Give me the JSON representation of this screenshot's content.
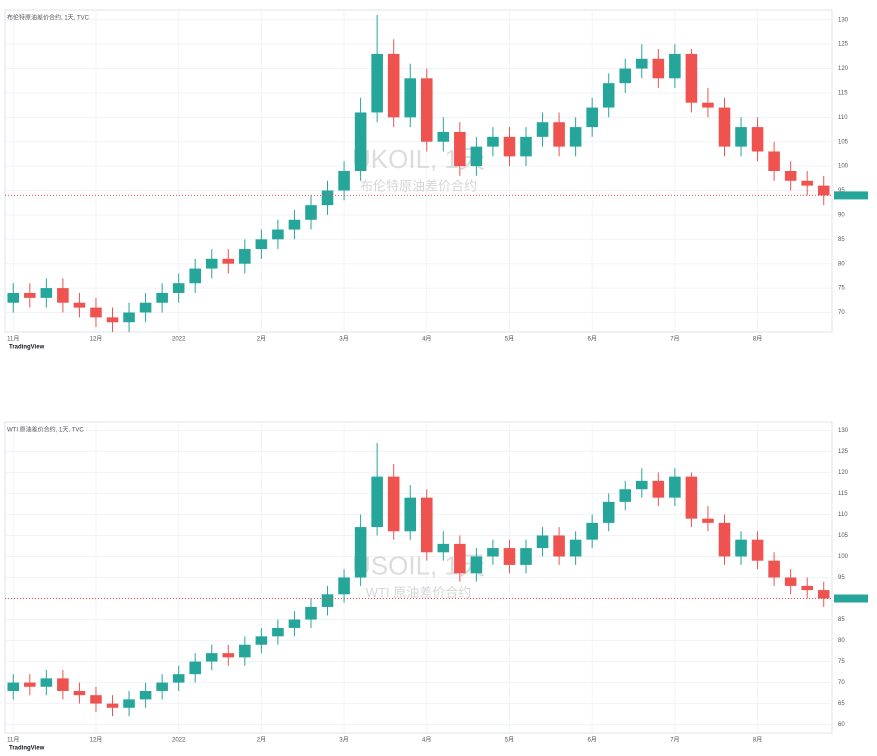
{
  "chart_data": [
    {
      "type": "candlestick",
      "title": "布伦特原油差价合约, 1天, TVC",
      "watermark": "UKOIL, 1天",
      "watermark_sub": "布伦特原油差价合约",
      "brand": "TradingView",
      "up_color": "#26a69a",
      "down_color": "#ef5350",
      "grid": true,
      "categories": [
        "11月",
        null,
        null,
        null,
        null,
        "12月",
        null,
        null,
        null,
        null,
        "2022",
        null,
        null,
        null,
        null,
        "2月",
        null,
        null,
        null,
        null,
        "3月",
        null,
        null,
        null,
        null,
        "4月",
        null,
        null,
        null,
        null,
        "5月",
        null,
        null,
        null,
        null,
        "6月",
        null,
        null,
        null,
        null,
        "7月",
        null,
        null,
        null,
        null,
        "8月",
        null,
        null,
        null,
        null
      ],
      "open": [
        72,
        74,
        73,
        75,
        72,
        71,
        69,
        68,
        70,
        72,
        74,
        76,
        79,
        81,
        80,
        83,
        85,
        87,
        89,
        92,
        95,
        99,
        111,
        123,
        110,
        118,
        105,
        107,
        100,
        104,
        106,
        102,
        106,
        109,
        104,
        108,
        112,
        117,
        120,
        122,
        118,
        123,
        113,
        112,
        104,
        108,
        103,
        99,
        97,
        96
      ],
      "high": [
        76,
        76,
        77,
        77,
        74,
        73,
        71,
        72,
        74,
        76,
        78,
        81,
        83,
        83,
        85,
        87,
        89,
        91,
        94,
        97,
        101,
        114,
        131,
        126,
        121,
        120,
        110,
        109,
        106,
        108,
        108,
        108,
        111,
        111,
        110,
        114,
        119,
        122,
        125,
        124,
        125,
        124,
        116,
        114,
        110,
        110,
        105,
        101,
        99,
        98
      ],
      "low": [
        70,
        71,
        71,
        70,
        69,
        67,
        66,
        66,
        68,
        70,
        72,
        74,
        77,
        78,
        78,
        81,
        83,
        85,
        87,
        90,
        93,
        97,
        109,
        108,
        108,
        103,
        103,
        98,
        98,
        102,
        100,
        100,
        104,
        102,
        102,
        106,
        110,
        115,
        118,
        116,
        116,
        111,
        110,
        102,
        102,
        101,
        97,
        95,
        94,
        92
      ],
      "close": [
        74,
        73,
        75,
        72,
        71,
        69,
        68,
        70,
        72,
        74,
        76,
        79,
        81,
        80,
        83,
        85,
        87,
        89,
        92,
        95,
        99,
        111,
        123,
        110,
        118,
        105,
        107,
        100,
        104,
        106,
        102,
        106,
        109,
        104,
        108,
        112,
        117,
        120,
        122,
        118,
        123,
        113,
        112,
        104,
        108,
        103,
        99,
        97,
        96,
        94
      ],
      "ylim": [
        66,
        132
      ],
      "yticks": [
        70,
        75,
        80,
        85,
        90,
        95,
        100,
        105,
        110,
        115,
        120,
        125,
        130
      ]
    },
    {
      "type": "candlestick",
      "title": "WTI 原油差价合约, 1天, TVC",
      "watermark": "USOIL, 1天",
      "watermark_sub": "WTI 原油差价合约",
      "brand": "TradingView",
      "up_color": "#26a69a",
      "down_color": "#ef5350",
      "grid": true,
      "categories": [
        "11月",
        null,
        null,
        null,
        null,
        "12月",
        null,
        null,
        null,
        null,
        "2022",
        null,
        null,
        null,
        null,
        "2月",
        null,
        null,
        null,
        null,
        "3月",
        null,
        null,
        null,
        null,
        "4月",
        null,
        null,
        null,
        null,
        "5月",
        null,
        null,
        null,
        null,
        "6月",
        null,
        null,
        null,
        null,
        "7月",
        null,
        null,
        null,
        null,
        "8月",
        null,
        null,
        null,
        null
      ],
      "open": [
        68,
        70,
        69,
        71,
        68,
        67,
        65,
        64,
        66,
        68,
        70,
        72,
        75,
        77,
        76,
        79,
        81,
        83,
        85,
        88,
        91,
        95,
        107,
        119,
        106,
        114,
        101,
        103,
        96,
        100,
        102,
        98,
        102,
        105,
        100,
        104,
        108,
        113,
        116,
        118,
        114,
        119,
        109,
        108,
        100,
        104,
        99,
        95,
        93,
        92
      ],
      "high": [
        72,
        72,
        73,
        73,
        70,
        69,
        67,
        68,
        70,
        72,
        74,
        77,
        79,
        79,
        81,
        83,
        85,
        87,
        90,
        93,
        97,
        110,
        127,
        122,
        117,
        116,
        106,
        105,
        102,
        104,
        104,
        104,
        107,
        107,
        106,
        110,
        115,
        118,
        121,
        120,
        121,
        120,
        112,
        110,
        106,
        106,
        101,
        97,
        95,
        94
      ],
      "low": [
        66,
        67,
        67,
        66,
        65,
        63,
        62,
        62,
        64,
        66,
        68,
        70,
        73,
        74,
        74,
        77,
        79,
        81,
        83,
        86,
        89,
        93,
        105,
        104,
        104,
        99,
        99,
        94,
        94,
        98,
        96,
        96,
        100,
        98,
        98,
        102,
        106,
        111,
        114,
        112,
        112,
        107,
        106,
        98,
        98,
        97,
        93,
        91,
        90,
        88
      ],
      "close": [
        70,
        69,
        71,
        68,
        67,
        65,
        64,
        66,
        68,
        70,
        72,
        75,
        77,
        76,
        79,
        81,
        83,
        85,
        88,
        91,
        95,
        107,
        119,
        106,
        114,
        101,
        103,
        96,
        100,
        102,
        98,
        102,
        105,
        100,
        104,
        108,
        113,
        116,
        118,
        114,
        119,
        109,
        108,
        100,
        104,
        99,
        95,
        93,
        92,
        90
      ],
      "ylim": [
        58,
        132
      ],
      "yticks": [
        60,
        65,
        70,
        75,
        80,
        85,
        90,
        95,
        100,
        105,
        110,
        115,
        120,
        125,
        130
      ]
    }
  ]
}
